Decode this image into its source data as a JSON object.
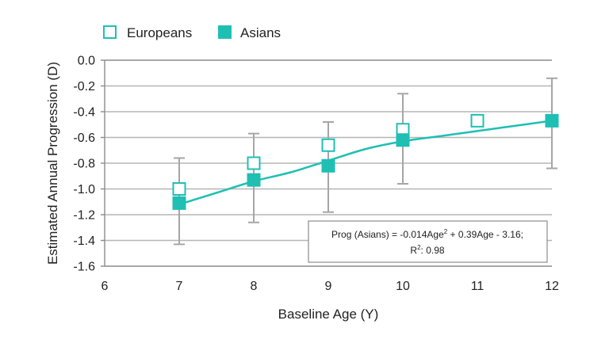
{
  "chart_data": {
    "type": "scatter",
    "xlabel": "Baseline Age (Y)",
    "ylabel": "Estimated Annual Progression (D)",
    "xlim": [
      6,
      12
    ],
    "ylim": [
      -1.6,
      0.0
    ],
    "xticks": [
      "6",
      "7",
      "8",
      "9",
      "10",
      "11",
      "12"
    ],
    "yticks": [
      "0.0",
      "-0.2",
      "-0.4",
      "-0.6",
      "-0.8",
      "-1.0",
      "-1.2",
      "-1.4",
      "-1.6"
    ],
    "grid": "horizontal",
    "legend_position": "top-left",
    "series": [
      {
        "name": "Europeans",
        "marker": "hollow-square",
        "color": "#1fbfb4",
        "points": [
          {
            "x": 7,
            "y": -1.0
          },
          {
            "x": 8,
            "y": -0.8
          },
          {
            "x": 9,
            "y": -0.66
          },
          {
            "x": 10,
            "y": -0.54
          },
          {
            "x": 11,
            "y": -0.47
          }
        ]
      },
      {
        "name": "Asians",
        "marker": "filled-square",
        "color": "#1fbfb4",
        "points": [
          {
            "x": 7,
            "y": -1.11,
            "low": -1.43,
            "high": -0.76
          },
          {
            "x": 8,
            "y": -0.93,
            "low": -1.26,
            "high": -0.57
          },
          {
            "x": 9,
            "y": -0.82,
            "low": -1.18,
            "high": -0.48
          },
          {
            "x": 10,
            "y": -0.62,
            "low": -0.96,
            "high": -0.26
          },
          {
            "x": 12,
            "y": -0.47,
            "low": -0.84,
            "high": -0.14
          }
        ]
      }
    ],
    "fit_line": {
      "color": "#1fbfb4",
      "x": [
        7,
        7.5,
        8,
        8.5,
        9,
        9.5,
        10,
        10.5,
        11,
        11.5,
        12
      ],
      "y": [
        -1.12,
        -1.03,
        -0.94,
        -0.87,
        -0.78,
        -0.69,
        -0.63,
        -0.59,
        -0.55,
        -0.51,
        -0.47
      ]
    },
    "annotation": {
      "line1_prefix": "Prog (Asians) = -0.014Age",
      "line1_sup": "2",
      "line1_suffix": " + 0.39Age - 3.16;",
      "line2_prefix": "R",
      "line2_sup": "2",
      "line2_suffix": ": 0.98"
    },
    "colors": {
      "series": "#1fbfb4",
      "errorbar": "#a6a6a6",
      "grid": "#b5b5b5",
      "axis": "#8c8c8c",
      "box_border": "#8c8c8c"
    }
  }
}
